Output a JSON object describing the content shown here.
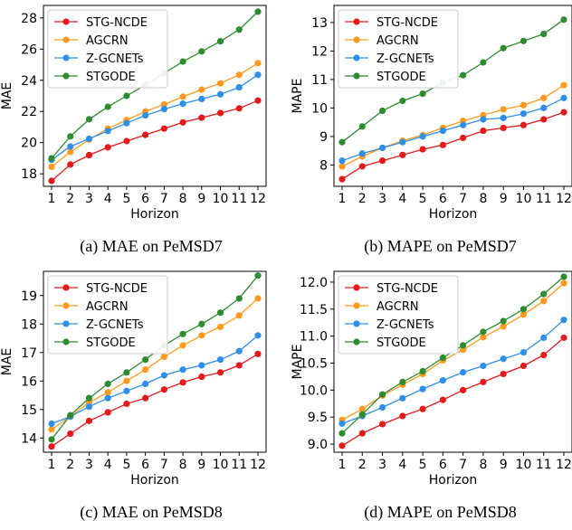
{
  "chart_data": [
    {
      "type": "line",
      "caption": "(a) MAE on PeMSD7",
      "xlabel": "Horizon",
      "ylabel": "MAE",
      "x": [
        1,
        2,
        3,
        4,
        5,
        6,
        7,
        8,
        9,
        10,
        11,
        12
      ],
      "ylim": [
        17.2,
        28.8
      ],
      "yticks": [
        18,
        20,
        22,
        24,
        26,
        28
      ],
      "legend": "top-left",
      "grid": false,
      "series": [
        {
          "name": "STG-NCDE",
          "color": "#e31a1c",
          "values": [
            17.55,
            18.6,
            19.2,
            19.7,
            20.1,
            20.5,
            20.9,
            21.3,
            21.6,
            21.9,
            22.2,
            22.7
          ]
        },
        {
          "name": "AGCRN",
          "color": "#ff9a1f",
          "values": [
            18.45,
            19.4,
            20.2,
            20.9,
            21.45,
            22.0,
            22.45,
            22.95,
            23.4,
            23.8,
            24.35,
            25.1
          ]
        },
        {
          "name": "Z-GCNETs",
          "color": "#2e8fe8",
          "values": [
            18.9,
            19.75,
            20.25,
            20.75,
            21.25,
            21.75,
            22.15,
            22.5,
            22.8,
            23.1,
            23.55,
            24.35
          ]
        },
        {
          "name": "STGODE",
          "color": "#2e8b30",
          "values": [
            19.0,
            20.4,
            21.5,
            22.3,
            23.0,
            23.7,
            24.45,
            25.2,
            25.85,
            26.5,
            27.25,
            28.4
          ]
        }
      ]
    },
    {
      "type": "line",
      "caption": "(b) MAPE on PeMSD7",
      "xlabel": "Horizon",
      "ylabel": "MAPE",
      "x": [
        1,
        2,
        3,
        4,
        5,
        6,
        7,
        8,
        9,
        10,
        11,
        12
      ],
      "ylim": [
        7.25,
        13.6
      ],
      "yticks": [
        8,
        9,
        10,
        11,
        12,
        13
      ],
      "legend": "top-left",
      "grid": false,
      "series": [
        {
          "name": "STG-NCDE",
          "color": "#e31a1c",
          "values": [
            7.5,
            7.95,
            8.15,
            8.35,
            8.55,
            8.7,
            8.95,
            9.2,
            9.3,
            9.4,
            9.6,
            9.85
          ]
        },
        {
          "name": "AGCRN",
          "color": "#ff9a1f",
          "values": [
            7.95,
            8.3,
            8.6,
            8.85,
            9.05,
            9.3,
            9.55,
            9.75,
            9.95,
            10.1,
            10.35,
            10.8
          ]
        },
        {
          "name": "Z-GCNETs",
          "color": "#2e8fe8",
          "values": [
            8.15,
            8.4,
            8.6,
            8.8,
            9.0,
            9.2,
            9.4,
            9.6,
            9.65,
            9.8,
            10.0,
            10.35
          ]
        },
        {
          "name": "STGODE",
          "color": "#2e8b30",
          "values": [
            8.8,
            9.35,
            9.9,
            10.25,
            10.5,
            10.9,
            11.15,
            11.6,
            12.1,
            12.35,
            12.6,
            13.1
          ]
        }
      ]
    },
    {
      "type": "line",
      "caption": "(c) MAE on PeMSD8",
      "xlabel": "Horizon",
      "ylabel": "MAE",
      "x": [
        1,
        2,
        3,
        4,
        5,
        6,
        7,
        8,
        9,
        10,
        11,
        12
      ],
      "ylim": [
        13.5,
        19.85
      ],
      "yticks": [
        14,
        15,
        16,
        17,
        18,
        19
      ],
      "legend": "top-left",
      "grid": false,
      "series": [
        {
          "name": "STG-NCDE",
          "color": "#e31a1c",
          "values": [
            13.7,
            14.15,
            14.6,
            14.9,
            15.2,
            15.4,
            15.7,
            15.95,
            16.15,
            16.3,
            16.55,
            16.95
          ]
        },
        {
          "name": "AGCRN",
          "color": "#ff9a1f",
          "values": [
            14.3,
            14.75,
            15.25,
            15.6,
            16.0,
            16.4,
            16.85,
            17.25,
            17.6,
            17.9,
            18.3,
            18.9
          ]
        },
        {
          "name": "Z-GCNETs",
          "color": "#2e8fe8",
          "values": [
            14.5,
            14.75,
            15.1,
            15.4,
            15.65,
            15.9,
            16.2,
            16.4,
            16.55,
            16.75,
            17.05,
            17.6
          ]
        },
        {
          "name": "STGODE",
          "color": "#2e8b30",
          "values": [
            13.95,
            14.8,
            15.4,
            15.9,
            16.3,
            16.75,
            17.25,
            17.65,
            18.0,
            18.4,
            18.9,
            19.7
          ]
        }
      ]
    },
    {
      "type": "line",
      "caption": "(d) MAPE on PeMSD8",
      "xlabel": "Horizon",
      "ylabel": "MAPE",
      "x": [
        1,
        2,
        3,
        4,
        5,
        6,
        7,
        8,
        9,
        10,
        11,
        12
      ],
      "ylim": [
        8.85,
        12.2
      ],
      "yticks": [
        9.0,
        9.5,
        10.0,
        10.5,
        11.0,
        11.5,
        12.0
      ],
      "ytick_labels": [
        "9.0",
        "9.5",
        "10.0",
        "10.5",
        "11.0",
        "11.5",
        "12.0"
      ],
      "legend": "top-left",
      "grid": false,
      "series": [
        {
          "name": "STG-NCDE",
          "color": "#e31a1c",
          "values": [
            8.97,
            9.2,
            9.37,
            9.52,
            9.65,
            9.82,
            10.0,
            10.15,
            10.3,
            10.45,
            10.65,
            10.97
          ]
        },
        {
          "name": "AGCRN",
          "color": "#ff9a1f",
          "values": [
            9.45,
            9.65,
            9.9,
            10.1,
            10.3,
            10.55,
            10.75,
            10.98,
            11.18,
            11.4,
            11.65,
            11.98
          ]
        },
        {
          "name": "Z-GCNETs",
          "color": "#2e8fe8",
          "values": [
            9.38,
            9.52,
            9.68,
            9.85,
            10.02,
            10.18,
            10.33,
            10.45,
            10.58,
            10.7,
            10.97,
            11.3
          ]
        },
        {
          "name": "STGODE",
          "color": "#2e8b30",
          "values": [
            9.2,
            9.55,
            9.92,
            10.15,
            10.35,
            10.6,
            10.83,
            11.08,
            11.28,
            11.5,
            11.78,
            12.1
          ]
        }
      ]
    }
  ]
}
